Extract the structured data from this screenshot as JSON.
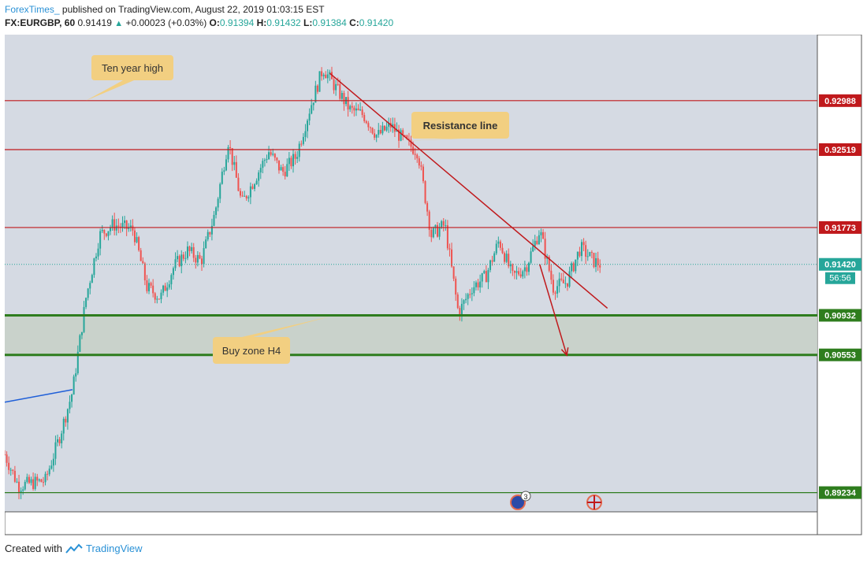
{
  "header": {
    "author": "ForexTimes_",
    "published": "published on TradingView.com, August 22, 2019 01:03:15 EST",
    "symbol": "FX:EURGBP, 60",
    "last": "0.91419",
    "change": "+0.00023 (+0.03%)",
    "o_label": "O:",
    "o_value": "0.91394",
    "h_label": "H:",
    "h_value": "0.91432",
    "l_label": "L:",
    "l_value": "0.91384",
    "c_label": "C:",
    "c_value": "0.91420"
  },
  "footer": {
    "created": "Created with",
    "brand": "TradingView"
  },
  "colors": {
    "background": "#d5dae3",
    "up": "#26a69a",
    "down": "#ef5350",
    "red_line": "#c0191c",
    "green_line": "#2e7d1e",
    "callout": "#f2cf81",
    "current_price": "#26a69a"
  },
  "chart_data": {
    "type": "candlestick",
    "symbol": "FX:EURGBP",
    "interval": "60",
    "ylim": [
      0.8905,
      0.9362
    ],
    "x_range": [
      0,
      120
    ],
    "close_path": [
      [
        0,
        0.896
      ],
      [
        2,
        0.893
      ],
      [
        6,
        0.8935
      ],
      [
        8,
        0.8975
      ],
      [
        10,
        0.902
      ],
      [
        12,
        0.911
      ],
      [
        14,
        0.917
      ],
      [
        16,
        0.918
      ],
      [
        19,
        0.9175
      ],
      [
        21,
        0.912
      ],
      [
        23,
        0.911
      ],
      [
        25,
        0.914
      ],
      [
        27,
        0.9155
      ],
      [
        29,
        0.9145
      ],
      [
        31,
        0.919
      ],
      [
        33,
        0.926
      ],
      [
        35,
        0.92
      ],
      [
        37,
        0.9225
      ],
      [
        39,
        0.925
      ],
      [
        41,
        0.923
      ],
      [
        43,
        0.9245
      ],
      [
        45,
        0.929
      ],
      [
        47,
        0.933
      ],
      [
        49,
        0.931
      ],
      [
        51,
        0.929
      ],
      [
        53,
        0.9285
      ],
      [
        55,
        0.9265
      ],
      [
        57,
        0.9275
      ],
      [
        59,
        0.926
      ],
      [
        61,
        0.925
      ],
      [
        63,
        0.917
      ],
      [
        65,
        0.918
      ],
      [
        67,
        0.9095
      ],
      [
        69,
        0.912
      ],
      [
        71,
        0.913
      ],
      [
        73,
        0.9165
      ],
      [
        75,
        0.913
      ],
      [
        77,
        0.914
      ],
      [
        79,
        0.9175
      ],
      [
        81,
        0.912
      ],
      [
        83,
        0.9125
      ],
      [
        85,
        0.9158
      ],
      [
        87,
        0.9145
      ],
      [
        88,
        0.9142
      ]
    ],
    "levels": [
      {
        "price": "0.92988",
        "value": 0.92988,
        "color": "#c0191c"
      },
      {
        "price": "0.92519",
        "value": 0.92519,
        "color": "#c0191c"
      },
      {
        "price": "0.91773",
        "value": 0.91773,
        "color": "#c0191c"
      },
      {
        "price": "0.90932",
        "value": 0.90932,
        "color": "#2e7d1e"
      },
      {
        "price": "0.90553",
        "value": 0.90553,
        "color": "#2e7d1e"
      },
      {
        "price": "0.89234",
        "value": 0.89234,
        "color": "#2e7d1e"
      }
    ],
    "current_price": {
      "price": "0.91420",
      "value": 0.9142,
      "countdown": "56:56"
    },
    "buy_zone": {
      "from": 0.90553,
      "to": 0.90932
    },
    "resistance_line": {
      "start": [
        48,
        0.9325
      ],
      "end": [
        89,
        0.91
      ]
    },
    "projection": [
      [
        79,
        0.9142
      ],
      [
        83,
        0.9055
      ]
    ],
    "blue_line": {
      "start": [
        0,
        0.901
      ],
      "end": [
        10,
        0.9022
      ]
    },
    "annotations": [
      {
        "text": "Ten year high",
        "anchor": [
          12,
          0.92988
        ]
      },
      {
        "text": "Resistance line",
        "anchor": [
          58,
          0.926
        ],
        "bold": true
      },
      {
        "text": "Buy zone H4",
        "anchor": [
          48,
          0.9092
        ]
      }
    ],
    "x_ticks": [
      "",
      "",
      "",
      "",
      "",
      "",
      "",
      "",
      "",
      "",
      "",
      ""
    ],
    "y_ticks": []
  }
}
